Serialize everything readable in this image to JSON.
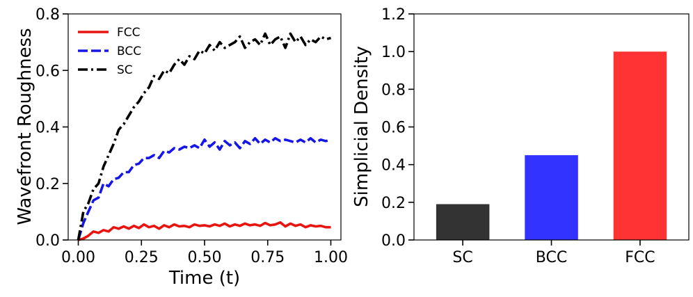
{
  "chart_data": [
    {
      "type": "line",
      "title": "",
      "xlabel": "Time (t)",
      "ylabel": "Wavefront Roughness",
      "xlim": [
        -0.04,
        1.04
      ],
      "ylim": [
        0.0,
        0.8
      ],
      "xticks": [
        0.0,
        0.25,
        0.5,
        0.75,
        1.0
      ],
      "xtick_labels": [
        "0.00",
        "0.25",
        "0.50",
        "0.75",
        "1.00"
      ],
      "yticks": [
        0.0,
        0.2,
        0.4,
        0.6,
        0.8
      ],
      "ytick_labels": [
        "0.0",
        "0.2",
        "0.4",
        "0.6",
        "0.8"
      ],
      "grid": false,
      "legend": "top-left",
      "series": [
        {
          "name": "FCC",
          "color": "#e8140f",
          "dash": "solid",
          "x": [
            0.0,
            0.02,
            0.04,
            0.06,
            0.08,
            0.1,
            0.12,
            0.14,
            0.16,
            0.18,
            0.2,
            0.22,
            0.24,
            0.26,
            0.28,
            0.3,
            0.32,
            0.34,
            0.36,
            0.38,
            0.4,
            0.42,
            0.44,
            0.46,
            0.48,
            0.5,
            0.52,
            0.54,
            0.56,
            0.58,
            0.6,
            0.62,
            0.64,
            0.66,
            0.68,
            0.7,
            0.72,
            0.74,
            0.76,
            0.78,
            0.8,
            0.82,
            0.84,
            0.86,
            0.88,
            0.9,
            0.92,
            0.94,
            0.96,
            0.98,
            1.0
          ],
          "y": [
            0.0,
            0.005,
            0.015,
            0.03,
            0.025,
            0.035,
            0.03,
            0.045,
            0.04,
            0.048,
            0.04,
            0.05,
            0.042,
            0.055,
            0.045,
            0.05,
            0.04,
            0.052,
            0.045,
            0.055,
            0.048,
            0.05,
            0.045,
            0.055,
            0.05,
            0.052,
            0.048,
            0.055,
            0.05,
            0.058,
            0.048,
            0.055,
            0.05,
            0.058,
            0.052,
            0.055,
            0.05,
            0.06,
            0.052,
            0.055,
            0.062,
            0.048,
            0.058,
            0.05,
            0.055,
            0.045,
            0.052,
            0.048,
            0.05,
            0.045,
            0.045
          ]
        },
        {
          "name": "BCC",
          "color": "#1515e6",
          "dash": "dashed",
          "x": [
            0.0,
            0.02,
            0.04,
            0.06,
            0.08,
            0.1,
            0.12,
            0.14,
            0.16,
            0.18,
            0.2,
            0.22,
            0.24,
            0.26,
            0.28,
            0.3,
            0.32,
            0.34,
            0.36,
            0.38,
            0.4,
            0.42,
            0.44,
            0.46,
            0.48,
            0.5,
            0.52,
            0.54,
            0.56,
            0.58,
            0.6,
            0.62,
            0.64,
            0.66,
            0.68,
            0.7,
            0.72,
            0.74,
            0.76,
            0.78,
            0.8,
            0.82,
            0.84,
            0.86,
            0.88,
            0.9,
            0.92,
            0.94,
            0.96,
            0.98,
            1.0
          ],
          "y": [
            0.0,
            0.06,
            0.1,
            0.14,
            0.15,
            0.2,
            0.19,
            0.215,
            0.22,
            0.24,
            0.24,
            0.265,
            0.27,
            0.29,
            0.29,
            0.3,
            0.29,
            0.315,
            0.31,
            0.325,
            0.32,
            0.33,
            0.325,
            0.335,
            0.325,
            0.355,
            0.33,
            0.345,
            0.32,
            0.35,
            0.335,
            0.345,
            0.325,
            0.35,
            0.34,
            0.36,
            0.34,
            0.355,
            0.345,
            0.36,
            0.35,
            0.355,
            0.35,
            0.345,
            0.355,
            0.345,
            0.36,
            0.345,
            0.355,
            0.35,
            0.355
          ]
        },
        {
          "name": "SC",
          "color": "#000000",
          "dash": "dashdot",
          "x": [
            0.0,
            0.02,
            0.04,
            0.06,
            0.08,
            0.1,
            0.12,
            0.14,
            0.16,
            0.18,
            0.2,
            0.22,
            0.24,
            0.26,
            0.28,
            0.3,
            0.32,
            0.34,
            0.36,
            0.38,
            0.4,
            0.42,
            0.44,
            0.46,
            0.48,
            0.5,
            0.52,
            0.54,
            0.56,
            0.58,
            0.6,
            0.62,
            0.64,
            0.66,
            0.68,
            0.7,
            0.72,
            0.74,
            0.76,
            0.78,
            0.8,
            0.82,
            0.84,
            0.86,
            0.88,
            0.9,
            0.92,
            0.94,
            0.96,
            0.98,
            1.0
          ],
          "y": [
            0.0,
            0.1,
            0.13,
            0.18,
            0.2,
            0.26,
            0.3,
            0.34,
            0.39,
            0.41,
            0.44,
            0.47,
            0.49,
            0.52,
            0.54,
            0.58,
            0.57,
            0.6,
            0.59,
            0.62,
            0.64,
            0.62,
            0.65,
            0.64,
            0.67,
            0.66,
            0.69,
            0.67,
            0.7,
            0.68,
            0.69,
            0.7,
            0.72,
            0.68,
            0.7,
            0.71,
            0.69,
            0.73,
            0.69,
            0.71,
            0.72,
            0.68,
            0.73,
            0.7,
            0.72,
            0.69,
            0.71,
            0.7,
            0.72,
            0.71,
            0.715
          ]
        }
      ]
    },
    {
      "type": "bar",
      "title": "",
      "xlabel": "",
      "ylabel": "Simplicial Density",
      "categories": [
        "SC",
        "BCC",
        "FCC"
      ],
      "values": [
        0.19,
        0.45,
        1.0
      ],
      "colors": [
        "#333333",
        "#3333ff",
        "#ff3333"
      ],
      "ylim": [
        0.0,
        1.2
      ],
      "yticks": [
        0.0,
        0.2,
        0.4,
        0.6,
        0.8,
        1.0,
        1.2
      ],
      "ytick_labels": [
        "0.0",
        "0.2",
        "0.4",
        "0.6",
        "0.8",
        "1.0",
        "1.2"
      ],
      "grid": false
    }
  ]
}
